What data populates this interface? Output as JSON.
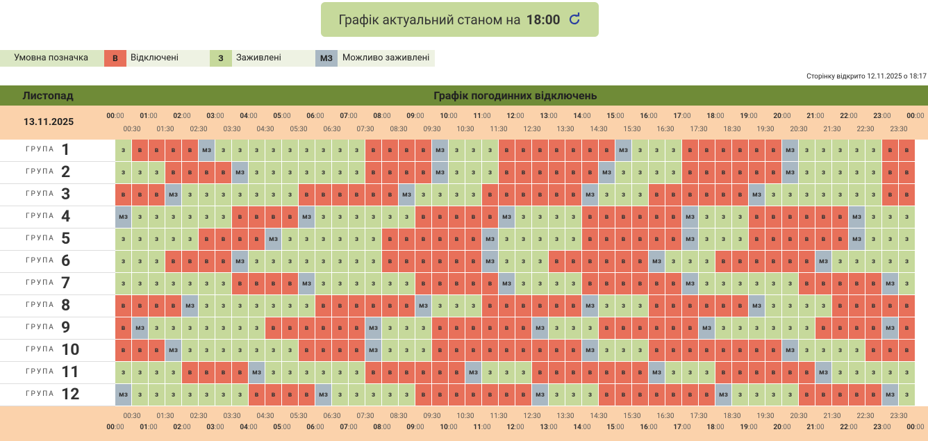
{
  "status_button": {
    "label": "Графік актуальний станом на",
    "time": "18:00"
  },
  "legend": {
    "title": "Умовна позначка",
    "items": [
      {
        "code": "В",
        "label": "Відключені",
        "color": "#e8705a"
      },
      {
        "code": "З",
        "label": "Заживлені",
        "color": "#c6d99b"
      },
      {
        "code": "МЗ",
        "label": "Можливо заживлені",
        "color": "#a9b8c3"
      }
    ]
  },
  "opened_note": "Сторінку відкрито 12.11.2025 о 18:17",
  "table": {
    "month": "Листопад",
    "title": "Графік погодинних відключень",
    "date": "13.11.2025",
    "hour_labels": [
      "00:00",
      "01:00",
      "02:00",
      "03:00",
      "04:00",
      "05:00",
      "06:00",
      "07:00",
      "08:00",
      "09:00",
      "10:00",
      "11:00",
      "12:00",
      "13:00",
      "14:00",
      "15:00",
      "16:00",
      "17:00",
      "18:00",
      "19:00",
      "20:00",
      "21:00",
      "22:00",
      "23:00",
      "00:00"
    ],
    "half_labels": [
      "00:30",
      "01:30",
      "02:30",
      "03:30",
      "04:30",
      "05:30",
      "06:30",
      "07:30",
      "08:30",
      "09:30",
      "10:30",
      "11:30",
      "12:30",
      "13:30",
      "14:30",
      "15:30",
      "16:30",
      "17:30",
      "18:30",
      "19:30",
      "20:30",
      "21:30",
      "22:30",
      "23:30"
    ],
    "group_word": "ГРУПА",
    "groups": [
      {
        "number": "1",
        "cells": [
          "з",
          "в",
          "в",
          "в",
          "в",
          "мз",
          "з",
          "з",
          "з",
          "з",
          "з",
          "з",
          "з",
          "з",
          "з",
          "в",
          "в",
          "в",
          "в",
          "мз",
          "з",
          "з",
          "з",
          "в",
          "в",
          "в",
          "в",
          "в",
          "в",
          "в",
          "мз",
          "з",
          "з",
          "з",
          "в",
          "в",
          "в",
          "в",
          "в",
          "в",
          "мз",
          "з",
          "з",
          "з",
          "з",
          "з",
          "в",
          "в"
        ]
      },
      {
        "number": "2",
        "cells": [
          "з",
          "з",
          "з",
          "в",
          "в",
          "в",
          "в",
          "мз",
          "з",
          "з",
          "з",
          "з",
          "з",
          "з",
          "з",
          "в",
          "в",
          "в",
          "в",
          "мз",
          "з",
          "з",
          "з",
          "в",
          "в",
          "в",
          "в",
          "в",
          "в",
          "мз",
          "з",
          "з",
          "з",
          "з",
          "в",
          "в",
          "в",
          "в",
          "в",
          "в",
          "мз",
          "з",
          "з",
          "з",
          "з",
          "з",
          "в",
          "в"
        ]
      },
      {
        "number": "3",
        "cells": [
          "в",
          "в",
          "в",
          "мз",
          "з",
          "з",
          "з",
          "з",
          "з",
          "з",
          "з",
          "в",
          "в",
          "в",
          "в",
          "в",
          "в",
          "мз",
          "з",
          "з",
          "з",
          "з",
          "в",
          "в",
          "в",
          "в",
          "в",
          "в",
          "мз",
          "з",
          "з",
          "з",
          "в",
          "в",
          "в",
          "в",
          "в",
          "в",
          "мз",
          "з",
          "з",
          "з",
          "з",
          "з",
          "з",
          "з",
          "в",
          "в"
        ]
      },
      {
        "number": "4",
        "cells": [
          "мз",
          "з",
          "з",
          "з",
          "з",
          "з",
          "з",
          "в",
          "в",
          "в",
          "в",
          "мз",
          "з",
          "з",
          "з",
          "з",
          "з",
          "з",
          "в",
          "в",
          "в",
          "в",
          "в",
          "мз",
          "з",
          "з",
          "з",
          "з",
          "в",
          "в",
          "в",
          "в",
          "в",
          "в",
          "мз",
          "з",
          "з",
          "з",
          "в",
          "в",
          "в",
          "в",
          "в",
          "в",
          "мз",
          "з",
          "з",
          "з"
        ]
      },
      {
        "number": "5",
        "cells": [
          "з",
          "з",
          "з",
          "з",
          "з",
          "в",
          "в",
          "в",
          "в",
          "мз",
          "з",
          "з",
          "з",
          "з",
          "з",
          "з",
          "в",
          "в",
          "в",
          "в",
          "в",
          "в",
          "мз",
          "з",
          "з",
          "з",
          "з",
          "з",
          "в",
          "в",
          "в",
          "в",
          "в",
          "в",
          "мз",
          "з",
          "з",
          "з",
          "в",
          "в",
          "в",
          "в",
          "в",
          "в",
          "мз",
          "з",
          "з",
          "з"
        ]
      },
      {
        "number": "6",
        "cells": [
          "з",
          "з",
          "з",
          "в",
          "в",
          "в",
          "в",
          "мз",
          "з",
          "з",
          "з",
          "з",
          "з",
          "з",
          "з",
          "з",
          "в",
          "в",
          "в",
          "в",
          "в",
          "в",
          "мз",
          "з",
          "з",
          "з",
          "в",
          "в",
          "в",
          "в",
          "в",
          "в",
          "мз",
          "з",
          "з",
          "з",
          "в",
          "в",
          "в",
          "в",
          "в",
          "в",
          "мз",
          "з",
          "з",
          "з",
          "з",
          "з"
        ]
      },
      {
        "number": "7",
        "cells": [
          "з",
          "з",
          "з",
          "з",
          "з",
          "з",
          "з",
          "в",
          "в",
          "в",
          "в",
          "мз",
          "з",
          "з",
          "з",
          "з",
          "з",
          "з",
          "в",
          "в",
          "в",
          "в",
          "в",
          "мз",
          "з",
          "з",
          "з",
          "з",
          "в",
          "в",
          "в",
          "в",
          "в",
          "в",
          "мз",
          "з",
          "з",
          "з",
          "з",
          "з",
          "з",
          "в",
          "в",
          "в",
          "в",
          "в",
          "мз",
          "з"
        ]
      },
      {
        "number": "8",
        "cells": [
          "в",
          "в",
          "в",
          "в",
          "мз",
          "з",
          "з",
          "з",
          "з",
          "з",
          "з",
          "з",
          "в",
          "в",
          "в",
          "в",
          "в",
          "в",
          "мз",
          "з",
          "з",
          "з",
          "в",
          "в",
          "в",
          "в",
          "в",
          "в",
          "мз",
          "з",
          "з",
          "з",
          "в",
          "в",
          "в",
          "в",
          "в",
          "в",
          "мз",
          "з",
          "з",
          "з",
          "з",
          "в",
          "в",
          "в",
          "в",
          "в"
        ]
      },
      {
        "number": "9",
        "cells": [
          "в",
          "мз",
          "з",
          "з",
          "з",
          "з",
          "з",
          "з",
          "з",
          "в",
          "в",
          "в",
          "в",
          "в",
          "в",
          "мз",
          "з",
          "з",
          "з",
          "в",
          "в",
          "в",
          "в",
          "в",
          "в",
          "мз",
          "з",
          "з",
          "з",
          "в",
          "в",
          "в",
          "в",
          "в",
          "в",
          "мз",
          "з",
          "з",
          "з",
          "з",
          "з",
          "з",
          "в",
          "в",
          "в",
          "в",
          "мз",
          "в"
        ]
      },
      {
        "number": "10",
        "cells": [
          "в",
          "в",
          "в",
          "мз",
          "з",
          "з",
          "з",
          "з",
          "з",
          "з",
          "з",
          "в",
          "в",
          "в",
          "в",
          "мз",
          "з",
          "з",
          "з",
          "в",
          "в",
          "в",
          "в",
          "в",
          "в",
          "в",
          "в",
          "в",
          "мз",
          "з",
          "з",
          "з",
          "в",
          "в",
          "в",
          "в",
          "в",
          "в",
          "в",
          "в",
          "мз",
          "з",
          "з",
          "з",
          "з",
          "в",
          "в",
          "в"
        ]
      },
      {
        "number": "11",
        "cells": [
          "з",
          "з",
          "з",
          "з",
          "в",
          "в",
          "в",
          "в",
          "мз",
          "з",
          "з",
          "з",
          "з",
          "з",
          "з",
          "в",
          "в",
          "в",
          "в",
          "в",
          "в",
          "мз",
          "з",
          "з",
          "з",
          "в",
          "в",
          "в",
          "в",
          "в",
          "в",
          "в",
          "мз",
          "з",
          "з",
          "з",
          "в",
          "в",
          "в",
          "в",
          "в",
          "в",
          "мз",
          "з",
          "з",
          "з",
          "з",
          "з"
        ]
      },
      {
        "number": "12",
        "cells": [
          "мз",
          "з",
          "з",
          "з",
          "з",
          "з",
          "з",
          "з",
          "в",
          "в",
          "в",
          "в",
          "мз",
          "з",
          "з",
          "з",
          "з",
          "з",
          "в",
          "в",
          "в",
          "в",
          "в",
          "в",
          "в",
          "мз",
          "з",
          "з",
          "з",
          "в",
          "в",
          "в",
          "в",
          "в",
          "в",
          "в",
          "мз",
          "з",
          "з",
          "з",
          "з",
          "в",
          "в",
          "в",
          "в",
          "в",
          "мз",
          "з"
        ]
      }
    ]
  }
}
